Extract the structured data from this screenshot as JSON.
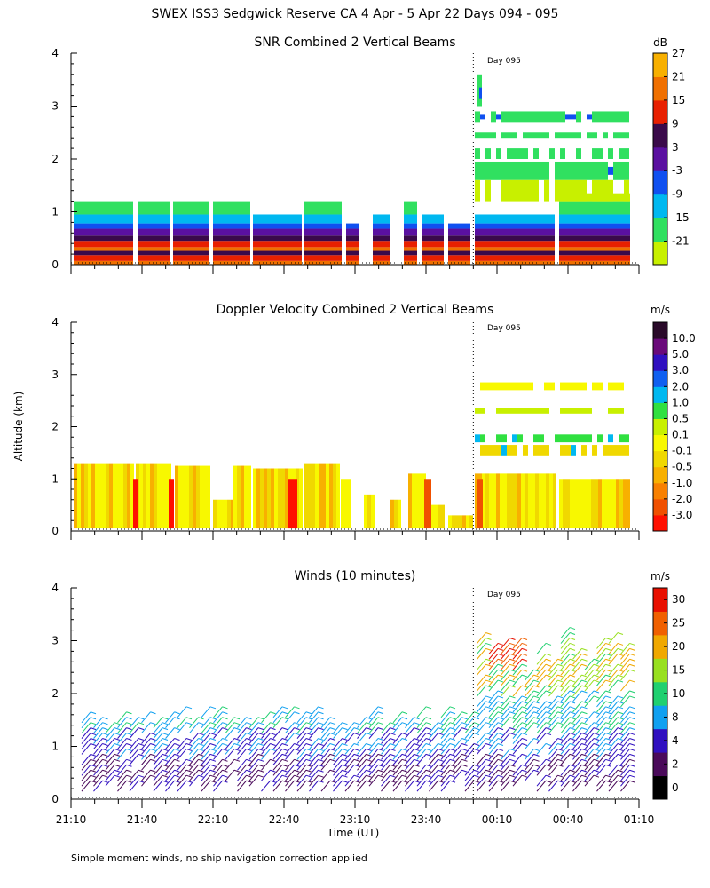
{
  "title": "SWEX ISS3 Sedgwick Reserve CA   4 Apr -  5 Apr 22 Days 094 - 095",
  "xlabel": "Time (UT)",
  "ylabel": "Altitude (km)",
  "footnote": "Simple moment winds, no ship navigation correction applied",
  "x_ticks": [
    "21:10",
    "21:40",
    "22:10",
    "22:40",
    "23:10",
    "23:40",
    "00:10",
    "00:40",
    "01:10"
  ],
  "y_ticks": [
    "0",
    "1",
    "2",
    "3",
    "4"
  ],
  "day_marker": "Day 095",
  "colors": {
    "snr": [
      "#c8f000",
      "#30e060",
      "#00b8f0",
      "#1050f0",
      "#5a10a0",
      "#3a0a4a",
      "#e82000",
      "#f07000",
      "#f8b000"
    ],
    "doppler": [
      "#ff1000",
      "#f05000",
      "#f88000",
      "#f8b000",
      "#f0d800",
      "#f8f800",
      "#c8f000",
      "#30e040",
      "#00b8f0",
      "#1060f0",
      "#3010c0",
      "#6a0a7a",
      "#2a0a2a"
    ],
    "winds": [
      "#000000",
      "#4a0a5a",
      "#3010c0",
      "#10a0f0",
      "#20d070",
      "#98e020",
      "#f0a800",
      "#f06000",
      "#e81000"
    ]
  },
  "chart_data": [
    {
      "type": "heatmap",
      "title": "SNR Combined 2 Vertical Beams",
      "units": "dB",
      "colorbar_labels": [
        "27",
        "21",
        "15",
        "9",
        "3",
        "-3",
        "-9",
        "-15",
        "-21"
      ],
      "colorbar_values": [
        27,
        21,
        15,
        9,
        3,
        -3,
        -9,
        -15,
        -21
      ],
      "xlim": [
        21.1667,
        25.1667
      ],
      "ylim": [
        0,
        4
      ],
      "ylabel": "Altitude (km)",
      "annotation": "Day 095",
      "day_boundary": "00:00"
    },
    {
      "type": "heatmap",
      "title": "Doppler Velocity Combined 2 Vertical Beams",
      "units": "m/s",
      "colorbar_labels": [
        "10.0",
        "5.0",
        "3.0",
        "2.0",
        "1.0",
        "0.5",
        "0.1",
        "-0.1",
        "-0.5",
        "-1.0",
        "-2.0",
        "-3.0"
      ],
      "colorbar_values": [
        10.0,
        5.0,
        3.0,
        2.0,
        1.0,
        0.5,
        0.1,
        -0.1,
        -0.5,
        -1.0,
        -2.0,
        -3.0
      ],
      "xlim": [
        21.1667,
        25.1667
      ],
      "ylim": [
        0,
        4
      ],
      "ylabel": "Altitude (km)",
      "annotation": "Day 095",
      "day_boundary": "00:00"
    },
    {
      "type": "scatter",
      "title": "Winds (10 minutes)",
      "units": "m/s",
      "colorbar_labels": [
        "30",
        "25",
        "20",
        "15",
        "10",
        "8",
        "4",
        "2",
        "0"
      ],
      "colorbar_values": [
        30,
        25,
        20,
        15,
        10,
        8,
        4,
        2,
        0
      ],
      "xlim": [
        21.1667,
        25.1667
      ],
      "ylim": [
        0,
        4
      ],
      "ylabel": "Altitude (km)",
      "xlabel": "Time (UT)",
      "annotation": "Day 095",
      "day_boundary": "00:00"
    }
  ]
}
